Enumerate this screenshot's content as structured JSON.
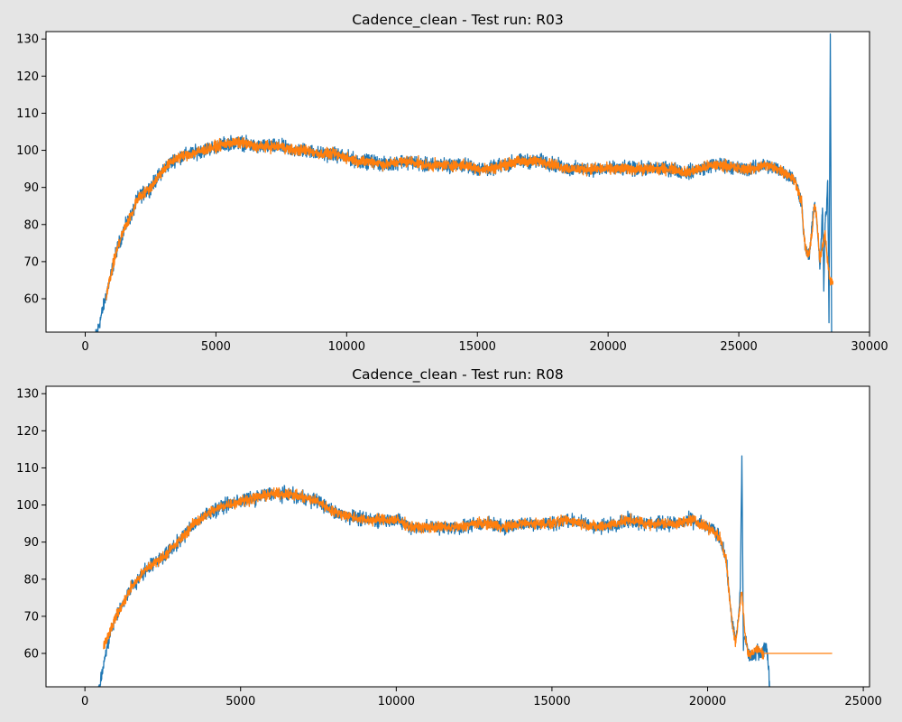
{
  "figure": {
    "background": "#e5e5e5",
    "plot_background": "#ffffff"
  },
  "colors": {
    "raw": "#1f77b4",
    "smoothed": "#ff7f0e"
  },
  "chart_data": [
    {
      "type": "line",
      "title": "Cadence_clean - Test run: R03",
      "xlabel": "",
      "ylabel": "",
      "xlim": [
        -1500,
        30000
      ],
      "ylim": [
        51,
        132
      ],
      "xticks": [
        0,
        5000,
        10000,
        15000,
        20000,
        25000,
        30000
      ],
      "xtick_labels": [
        "0",
        "5000",
        "10000",
        "15000",
        "20000",
        "25000",
        "30000"
      ],
      "yticks": [
        60,
        70,
        80,
        90,
        100,
        110,
        120,
        130
      ],
      "ytick_labels": [
        "60",
        "70",
        "80",
        "90",
        "100",
        "110",
        "120",
        "130"
      ],
      "grid": false,
      "series": [
        {
          "color": "#1f77b4",
          "noise": 1.3,
          "x": [
            400,
            500,
            600,
            700,
            800,
            1000,
            1200,
            1500,
            1800,
            2000,
            2500,
            3000,
            3500,
            4000,
            4500,
            5000,
            5500,
            6000,
            6500,
            7000,
            7500,
            8000,
            8500,
            9000,
            9500,
            10000,
            10500,
            11000,
            11500,
            12000,
            12500,
            13000,
            13500,
            14000,
            14500,
            15000,
            15500,
            16000,
            16500,
            17000,
            17500,
            18000,
            18500,
            19000,
            19500,
            20000,
            20500,
            21000,
            21500,
            22000,
            22500,
            23000,
            23500,
            24000,
            24500,
            25000,
            25500,
            26000,
            26500,
            27000,
            27200,
            27400,
            27500,
            27600,
            27700,
            27800,
            27900,
            28000,
            28100,
            28150,
            28200,
            28250,
            28300,
            28350,
            28400,
            28450,
            28500,
            28550,
            28600
          ],
          "y": [
            50,
            52,
            55,
            58,
            61,
            67,
            73,
            79,
            83,
            87,
            90,
            95,
            98,
            99,
            100,
            101,
            102,
            102,
            101,
            101,
            101,
            100,
            100,
            99,
            99,
            98,
            97,
            97,
            96,
            97,
            97,
            96,
            96,
            96,
            96,
            95,
            95,
            96,
            97,
            97,
            97,
            96,
            95,
            95,
            95,
            95,
            95,
            95,
            95,
            95,
            95,
            94,
            95,
            96,
            96,
            95,
            95,
            96,
            95,
            93,
            91,
            86,
            76,
            72,
            72,
            79,
            86,
            80,
            68,
            75,
            85,
            62,
            80,
            84,
            92,
            55,
            132,
            50,
            50
          ]
        },
        {
          "color": "#ff7f0e",
          "noise": 1.0,
          "x": [
            800,
            1000,
            1200,
            1500,
            1800,
            2000,
            2500,
            3000,
            3500,
            4000,
            4500,
            5000,
            5500,
            6000,
            6500,
            7000,
            7500,
            8000,
            8500,
            9000,
            9500,
            10000,
            10500,
            11000,
            11500,
            12000,
            12500,
            13000,
            13500,
            14000,
            14500,
            15000,
            15500,
            16000,
            16500,
            17000,
            17500,
            18000,
            18500,
            19000,
            19500,
            20000,
            20500,
            21000,
            21500,
            22000,
            22500,
            23000,
            23500,
            24000,
            24500,
            25000,
            25500,
            26000,
            26500,
            27000,
            27200,
            27400,
            27500,
            27600,
            27700,
            27800,
            27900,
            28000,
            28100,
            28200,
            28300,
            28400,
            28500,
            28600
          ],
          "y": [
            61,
            67,
            73,
            79,
            83,
            87,
            90,
            95,
            98,
            99,
            100,
            101,
            102,
            102,
            101,
            101,
            101,
            100,
            100,
            99,
            99,
            98,
            97,
            97,
            96,
            97,
            97,
            96,
            96,
            96,
            96,
            95,
            95,
            96,
            97,
            97,
            97,
            96,
            95,
            95,
            95,
            95,
            95,
            95,
            95,
            95,
            95,
            94,
            95,
            96,
            96,
            95,
            95,
            96,
            95,
            93,
            91,
            86,
            76,
            72,
            72,
            78,
            86,
            80,
            70,
            74,
            78,
            70,
            65,
            64
          ]
        }
      ]
    },
    {
      "type": "line",
      "title": "Cadence_clean - Test run: R08",
      "xlabel": "",
      "ylabel": "",
      "xlim": [
        -1250,
        25200
      ],
      "ylim": [
        51,
        132
      ],
      "xticks": [
        0,
        5000,
        10000,
        15000,
        20000,
        25000
      ],
      "xtick_labels": [
        "0",
        "5000",
        "10000",
        "15000",
        "20000",
        "25000"
      ],
      "yticks": [
        60,
        70,
        80,
        90,
        100,
        110,
        120,
        130
      ],
      "ytick_labels": [
        "60",
        "70",
        "80",
        "90",
        "100",
        "110",
        "120",
        "130"
      ],
      "grid": false,
      "series": [
        {
          "color": "#1f77b4",
          "noise": 1.3,
          "x": [
            400,
            500,
            600,
            700,
            800,
            1000,
            1200,
            1500,
            1800,
            2000,
            2500,
            3000,
            3500,
            4000,
            4500,
            5000,
            5500,
            6000,
            6500,
            7000,
            7500,
            8000,
            8500,
            9000,
            9500,
            10000,
            10500,
            11000,
            11500,
            12000,
            12500,
            13000,
            13500,
            14000,
            14500,
            15000,
            15500,
            16000,
            16500,
            17000,
            17500,
            18000,
            18500,
            19000,
            19500,
            20000,
            20200,
            20400,
            20600,
            20700,
            20800,
            20900,
            21000,
            21050,
            21100,
            21150,
            21200,
            21300,
            21400,
            21500,
            21600,
            21700,
            21800,
            21900,
            22000
          ],
          "y": [
            50,
            52,
            57,
            61,
            65,
            70,
            73,
            78,
            81,
            83,
            86,
            90,
            95,
            98,
            100,
            101,
            102,
            103,
            103,
            102,
            101,
            98,
            97,
            96,
            96,
            96,
            94,
            94,
            94,
            94,
            95,
            95,
            94,
            95,
            95,
            95,
            96,
            95,
            94,
            95,
            96,
            95,
            95,
            95,
            96,
            94,
            93,
            91,
            85,
            75,
            68,
            63,
            70,
            78,
            113,
            62,
            65,
            60,
            59,
            59,
            61,
            60,
            61,
            62,
            51
          ]
        },
        {
          "color": "#ff7f0e",
          "noise": 1.0,
          "x": [
            600,
            700,
            800,
            1000,
            1200,
            1500,
            1800,
            2000,
            2500,
            3000,
            3500,
            4000,
            4500,
            5000,
            5500,
            6000,
            6500,
            7000,
            7500,
            8000,
            8500,
            9000,
            9500,
            10000,
            10500,
            11000,
            11500,
            12000,
            12500,
            13000,
            13500,
            14000,
            14500,
            15000,
            15500,
            16000,
            16500,
            17000,
            17500,
            18000,
            18500,
            19000,
            19500,
            20000,
            20200,
            20400,
            20600,
            20700,
            20800,
            20900,
            21000,
            21100,
            21200,
            21300,
            21400,
            21600,
            21800,
            22000,
            22500,
            23000,
            23500,
            24000
          ],
          "y": [
            62,
            64,
            66,
            70,
            73,
            78,
            81,
            83,
            86,
            90,
            95,
            98,
            100,
            101,
            102,
            103,
            103,
            102,
            101,
            98,
            97,
            96,
            96,
            96,
            94,
            94,
            94,
            94,
            95,
            95,
            94,
            95,
            95,
            95,
            96,
            95,
            94,
            95,
            96,
            95,
            95,
            95,
            96,
            94,
            93,
            91,
            85,
            75,
            68,
            63,
            70,
            77,
            65,
            60,
            60,
            61,
            60,
            60,
            60,
            60,
            60,
            60
          ]
        }
      ]
    }
  ]
}
